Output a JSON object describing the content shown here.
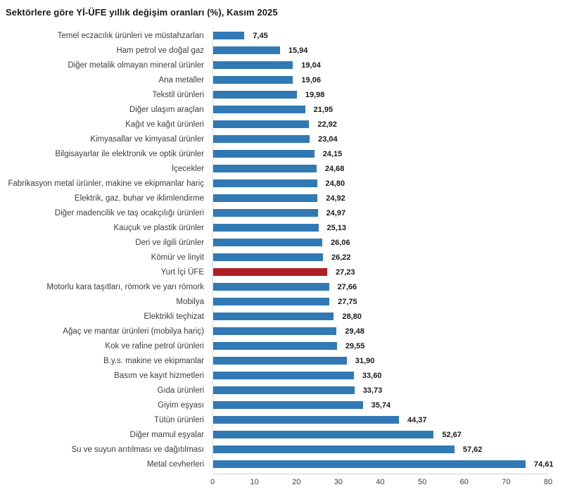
{
  "title": "Sektörlere göre Yİ-ÜFE yıllık değişim oranları (%), Kasım 2025",
  "colors": {
    "bar": "#3179b5",
    "highlight": "#b01e24",
    "axis_line": "#cfcfcf",
    "label_text": "#3c3c3c",
    "value_text": "#1a1a1a"
  },
  "chart_data": {
    "type": "bar",
    "orientation": "horizontal",
    "title": "Sektörlere göre Yİ-ÜFE yıllık değişim oranları (%), Kasım 2025",
    "xlabel": "",
    "ylabel": "",
    "xlim": [
      0,
      80
    ],
    "x_ticks": [
      0,
      10,
      20,
      30,
      40,
      50,
      60,
      70,
      80
    ],
    "grid": false,
    "legend": false,
    "bar_color": "#3179b5",
    "highlight_category": "Yurt İçi ÜFE",
    "highlight_color": "#b01e24",
    "categories": [
      "Temel eczacılık ürünleri ve müstahzarları",
      "Ham petrol ve doğal gaz",
      "Diğer metalik olmayan mineral ürünler",
      "Ana metaller",
      "Tekstil ürünleri",
      "Diğer ulaşım araçları",
      "Kağıt ve kağıt ürünleri",
      "Kimyasallar ve kimyasal ürünler",
      "Bilgisayarlar ile elektronik ve optik ürünler",
      "İçecekler",
      "Fabrikasyon metal ürünler, makine ve ekipmanlar hariç",
      "Elektrik, gaz, buhar ve iklimlendirme",
      "Diğer madencilik ve taş ocakçılığı ürünleri",
      "Kauçuk ve plastik ürünler",
      "Deri ve ilgili ürünler",
      "Kömür ve linyit",
      "Yurt İçi ÜFE",
      "Motorlu kara taşıtları, römork ve yarı römork",
      "Mobilya",
      "Elektrikli teçhizat",
      "Ağaç ve mantar ürünleri (mobilya hariç)",
      "Kok ve rafine petrol ürünleri",
      "B.y.s. makine ve ekipmanlar",
      "Basım ve kayıt hizmetleri",
      "Gıda ürünleri",
      "Giyim eşyası",
      "Tütün ürünleri",
      "Diğer mamul eşyalar",
      "Su ve suyun arıtılması ve dağıtılması",
      "Metal cevherleri"
    ],
    "values": [
      7.45,
      15.94,
      19.04,
      19.06,
      19.98,
      21.95,
      22.92,
      23.04,
      24.15,
      24.68,
      24.8,
      24.92,
      24.97,
      25.13,
      26.06,
      26.22,
      27.23,
      27.66,
      27.75,
      28.8,
      29.48,
      29.55,
      31.9,
      33.6,
      33.73,
      35.74,
      44.37,
      52.67,
      57.62,
      74.61
    ],
    "value_labels": [
      "7,45",
      "15,94",
      "19,04",
      "19,06",
      "19,98",
      "21,95",
      "22,92",
      "23,04",
      "24,15",
      "24,68",
      "24,80",
      "24,92",
      "24,97",
      "25,13",
      "26,06",
      "26,22",
      "27,23",
      "27,66",
      "27,75",
      "28,80",
      "29,48",
      "29,55",
      "31,90",
      "33,60",
      "33,73",
      "35,74",
      "44,37",
      "52,67",
      "57,62",
      "74,61"
    ]
  }
}
